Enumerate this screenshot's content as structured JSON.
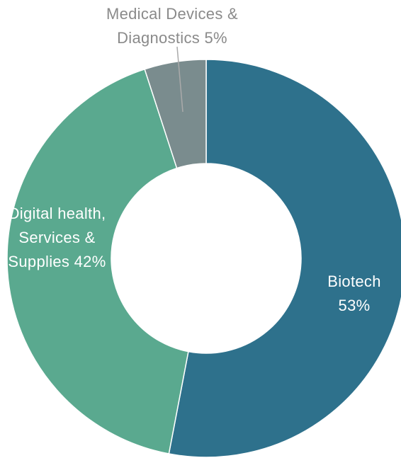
{
  "chart_data": {
    "type": "donut",
    "categories": [
      "Biotech",
      "Digital health, Services & Supplies",
      "Medical Devices & Diagnostics"
    ],
    "values": [
      53,
      42,
      5
    ],
    "value_labels": [
      "53%",
      "42%",
      "5%"
    ],
    "colors": [
      "#2e718c",
      "#5aa98f",
      "#7a8c8e"
    ]
  }
}
